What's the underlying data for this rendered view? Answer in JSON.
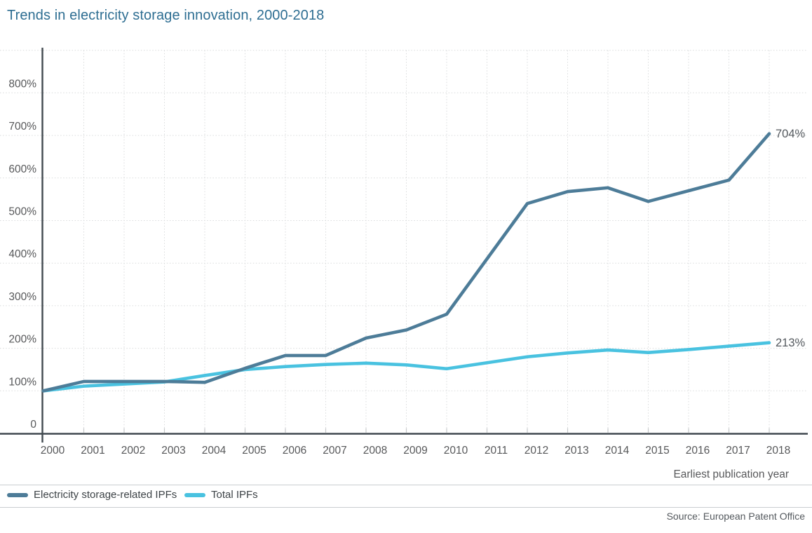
{
  "title": "Trends in electricity storage innovation, 2000-2018",
  "source": "Source: European Patent Office",
  "x_axis": {
    "label": "Earliest publication year",
    "ticks": [
      "2000",
      "2001",
      "2002",
      "2003",
      "2004",
      "2005",
      "2006",
      "2007",
      "2008",
      "2009",
      "2010",
      "2011",
      "2012",
      "2013",
      "2014",
      "2015",
      "2016",
      "2017",
      "2018"
    ]
  },
  "y_axis": {
    "ticks": [
      {
        "value": 0,
        "label": "0"
      },
      {
        "value": 100,
        "label": "100%"
      },
      {
        "value": 200,
        "label": "200%"
      },
      {
        "value": 300,
        "label": "300%"
      },
      {
        "value": 400,
        "label": "400%"
      },
      {
        "value": 500,
        "label": "500%"
      },
      {
        "value": 600,
        "label": "600%"
      },
      {
        "value": 700,
        "label": "700%"
      },
      {
        "value": 800,
        "label": "800%"
      },
      {
        "value": 900,
        "label": ""
      }
    ]
  },
  "legend": [
    {
      "label": "Electricity storage-related IPFs"
    },
    {
      "label": "Total IPFs"
    }
  ],
  "colors": {
    "storage_line": "#4d7c98",
    "total_line": "#49c2e0",
    "title_text": "#2e6e92",
    "tick_text": "#57585a",
    "axis_line": "#424a50",
    "gridline": "#d9dbdc",
    "tick_mark": "#c6c9cb",
    "divider": "#c9cdd0",
    "legend_text": "#3d4347",
    "end_label_text": "#54595e"
  },
  "chart_data": {
    "type": "line",
    "title": "Trends in electricity storage innovation, 2000-2018",
    "xlabel": "Earliest publication year",
    "x": [
      2000,
      2001,
      2002,
      2003,
      2004,
      2005,
      2006,
      2007,
      2008,
      2009,
      2010,
      2011,
      2012,
      2013,
      2014,
      2015,
      2016,
      2017,
      2018
    ],
    "series": [
      {
        "name": "Electricity storage-related IPFs",
        "color": "#4d7c98",
        "end_label": "704%",
        "values": [
          100,
          122,
          122,
          122,
          120,
          153,
          183,
          183,
          224,
          243,
          280,
          410,
          540,
          568,
          577,
          545,
          570,
          595,
          704
        ]
      },
      {
        "name": "Total IPFs",
        "color": "#49c2e0",
        "end_label": "213%",
        "values": [
          100,
          111,
          116,
          121,
          136,
          150,
          157,
          162,
          165,
          161,
          152,
          166,
          180,
          189,
          196,
          190,
          197,
          205,
          213
        ]
      }
    ],
    "ylim": [
      0,
      905
    ],
    "y_ticks": [
      0,
      100,
      200,
      300,
      400,
      500,
      600,
      700,
      800,
      900
    ],
    "index_note": "values indexed, 2000 = 100%",
    "grid": "dotted",
    "legend_position": "bottom-left"
  }
}
